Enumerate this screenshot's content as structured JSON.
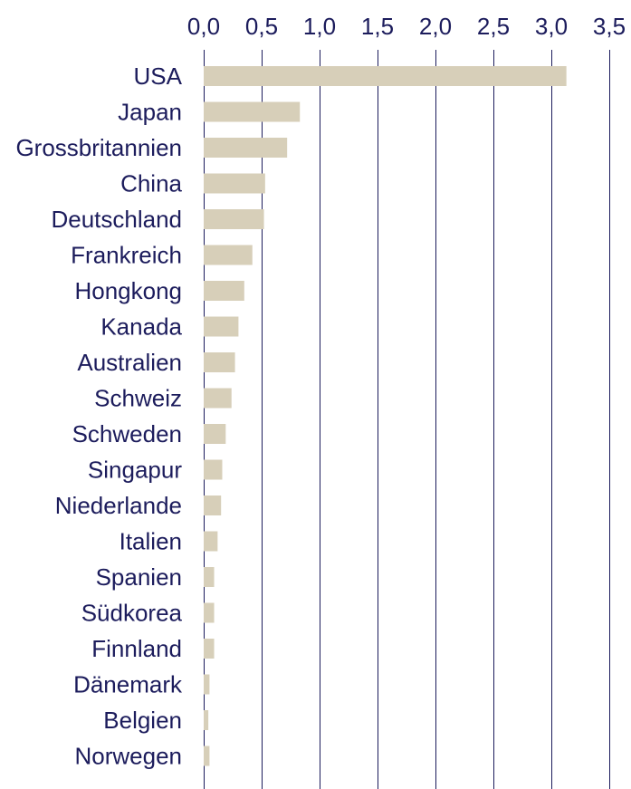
{
  "chart_data": {
    "type": "bar",
    "orientation": "horizontal",
    "title": "",
    "xlabel": "",
    "ylabel": "",
    "xlim": [
      0,
      3.5
    ],
    "ticks": [
      0,
      0.5,
      1.0,
      1.5,
      2.0,
      2.5,
      3.0,
      3.5
    ],
    "tick_labels": [
      "0,0",
      "0,5",
      "1,0",
      "1,5",
      "2,0",
      "2,5",
      "3,0",
      "3,5"
    ],
    "grid": "vertical",
    "categories": [
      "USA",
      "Japan",
      "Grossbritannien",
      "China",
      "Deutschland",
      "Frankreich",
      "Hongkong",
      "Kanada",
      "Australien",
      "Schweiz",
      "Schweden",
      "Singapur",
      "Niederlande",
      "Italien",
      "Spanien",
      "Südkorea",
      "Finnland",
      "Dänemark",
      "Belgien",
      "Norwegen"
    ],
    "values": [
      3.13,
      0.83,
      0.72,
      0.53,
      0.52,
      0.42,
      0.35,
      0.3,
      0.27,
      0.24,
      0.19,
      0.16,
      0.15,
      0.12,
      0.09,
      0.09,
      0.09,
      0.05,
      0.04,
      0.05
    ]
  },
  "colors": {
    "bar": "#d7cfb9",
    "text": "#1c1c5c",
    "grid": "#1c1c5c"
  }
}
